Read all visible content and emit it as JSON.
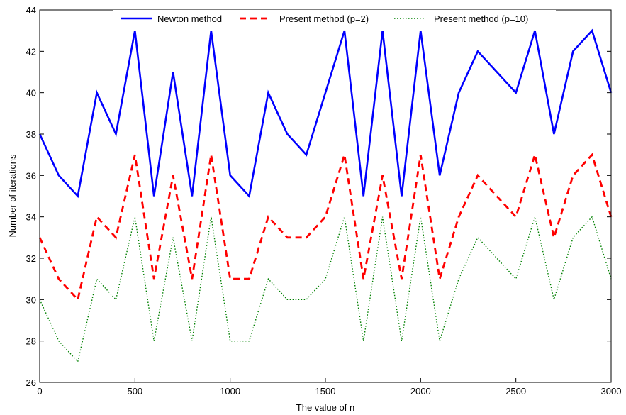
{
  "chart_data": {
    "type": "line",
    "xlabel": "The value of n",
    "ylabel": "Number of iterations",
    "xlim": [
      0,
      3000
    ],
    "ylim": [
      26,
      44
    ],
    "x_ticks": [
      "0",
      "500",
      "1000",
      "1500",
      "2000",
      "2500",
      "3000"
    ],
    "y_ticks": [
      "26",
      "28",
      "30",
      "32",
      "34",
      "36",
      "38",
      "40",
      "42",
      "44"
    ],
    "grid": false,
    "legend_position": "top",
    "x": [
      0,
      100,
      200,
      300,
      400,
      500,
      600,
      700,
      800,
      900,
      1000,
      1100,
      1200,
      1300,
      1400,
      1500,
      1600,
      1700,
      1800,
      1900,
      2000,
      2100,
      2200,
      2300,
      2400,
      2500,
      2600,
      2700,
      2800,
      2900,
      3000
    ],
    "series": [
      {
        "name": "Newton method",
        "color": "#0000ff",
        "style": "solid",
        "values": [
          38,
          36,
          35,
          40,
          38,
          43,
          35,
          41,
          35,
          43,
          36,
          35,
          40,
          38,
          37,
          40,
          43,
          35,
          43,
          35,
          43,
          36,
          40,
          42,
          41,
          40,
          43,
          38,
          42,
          43,
          40
        ]
      },
      {
        "name": "Present method (p=2)",
        "color": "#ff0000",
        "style": "dashed",
        "values": [
          33,
          31,
          30,
          34,
          33,
          37,
          31,
          36,
          31,
          37,
          31,
          31,
          34,
          33,
          33,
          34,
          37,
          31,
          36,
          31,
          37,
          31,
          34,
          36,
          35,
          34,
          37,
          33,
          36,
          37,
          34
        ]
      },
      {
        "name": "Present method (p=10)",
        "color": "#008000",
        "style": "dotted",
        "values": [
          30,
          28,
          27,
          31,
          30,
          34,
          28,
          33,
          28,
          34,
          28,
          28,
          31,
          30,
          30,
          31,
          34,
          28,
          34,
          28,
          34,
          28,
          31,
          33,
          32,
          31,
          34,
          30,
          33,
          34,
          31
        ]
      }
    ]
  }
}
